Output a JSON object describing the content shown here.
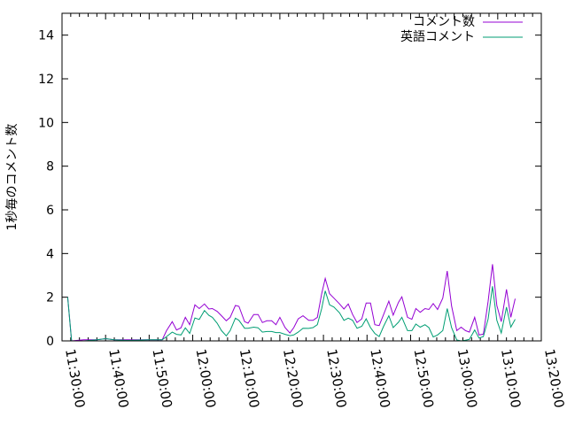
{
  "chart_data": {
    "type": "line",
    "title": "",
    "xlabel": "",
    "ylabel": "1秒毎のコメント数",
    "xlim": [
      "11:30:00",
      "13:20:00"
    ],
    "ylim": [
      0,
      15
    ],
    "x_tick_labels": [
      "11:30:00",
      "11:40:00",
      "11:50:00",
      "12:00:00",
      "12:10:00",
      "12:20:00",
      "12:30:00",
      "12:40:00",
      "12:50:00",
      "13:00:00",
      "13:10:00",
      "13:20:00"
    ],
    "y_ticks": [
      0,
      2,
      4,
      6,
      8,
      10,
      12,
      14
    ],
    "y_tick_labels": [
      "0",
      "2",
      "4",
      "6",
      "8",
      "10",
      "12",
      "14"
    ],
    "grid": false,
    "legend_position": "top-right",
    "x": [
      "11:31:18",
      "11:32:12",
      "11:35:00",
      "11:38:00",
      "11:40:00",
      "11:42:00",
      "11:45:00",
      "11:50:00",
      "11:53:00",
      "11:54:00",
      "11:55:18",
      "11:56:18",
      "11:57:18",
      "11:58:18",
      "11:59:18",
      "12:00:30",
      "12:01:30",
      "12:02:42",
      "12:03:42",
      "12:04:30",
      "12:05:36",
      "12:06:36",
      "12:07:42",
      "12:08:36",
      "12:09:48",
      "12:10:36",
      "12:11:54",
      "12:12:42",
      "12:14:00",
      "12:15:00",
      "12:16:00",
      "12:17:00",
      "12:18:06",
      "12:19:06",
      "12:20:00",
      "12:21:12",
      "12:22:18",
      "12:23:12",
      "12:24:12",
      "12:25:18",
      "12:26:36",
      "12:27:36",
      "12:28:36",
      "12:29:36",
      "12:30:24",
      "12:31:24",
      "12:32:24",
      "12:33:42",
      "12:34:42",
      "12:35:42",
      "12:36:42",
      "12:37:42",
      "12:38:48",
      "12:39:48",
      "12:40:48",
      "12:41:48",
      "12:42:48",
      "12:43:48",
      "12:45:00",
      "12:46:00",
      "12:47:12",
      "12:48:00",
      "12:49:18",
      "12:50:18",
      "12:51:12",
      "12:52:12",
      "12:53:18",
      "12:54:12",
      "12:55:12",
      "12:56:12",
      "12:57:24",
      "12:58:24",
      "12:59:24",
      "13:00:36",
      "13:01:36",
      "13:02:36",
      "13:03:30",
      "13:04:42",
      "13:05:42",
      "13:06:42",
      "13:07:48",
      "13:08:48",
      "13:09:48",
      "13:10:48",
      "13:12:00",
      "13:13:00",
      "13:14:00"
    ],
    "series": [
      {
        "name": "コメント数",
        "color": "#9400d3",
        "values": [
          2,
          0,
          0.05,
          0.05,
          0.1,
          0.05,
          0.05,
          0.05,
          0.05,
          0.47,
          0.88,
          0.5,
          0.6,
          1.08,
          0.74,
          1.65,
          1.48,
          1.69,
          1.46,
          1.48,
          1.35,
          1.15,
          0.92,
          1.08,
          1.62,
          1.58,
          0.88,
          0.81,
          1.21,
          1.21,
          0.84,
          0.92,
          0.92,
          0.74,
          1.08,
          0.61,
          0.36,
          0.61,
          1.01,
          1.15,
          0.94,
          0.94,
          1.08,
          2.16,
          2.86,
          2.16,
          1.96,
          1.69,
          1.46,
          1.69,
          1.21,
          0.84,
          1.01,
          1.73,
          1.73,
          0.74,
          0.7,
          1.21,
          1.82,
          1.18,
          1.76,
          2.02,
          1.08,
          0.99,
          1.48,
          1.31,
          1.48,
          1.44,
          1.71,
          1.44,
          1.96,
          3.2,
          1.6,
          0.47,
          0.63,
          0.47,
          0.4,
          1.08,
          0.27,
          0.31,
          1.82,
          3.51,
          1.62,
          0.88,
          2.36,
          1.08,
          1.93
        ]
      },
      {
        "name": "英語コメント",
        "color": "#009e73",
        "values": [
          2,
          0,
          0,
          0.05,
          0.1,
          0.05,
          0.02,
          0.05,
          0.05,
          0.2,
          0.4,
          0.3,
          0.27,
          0.6,
          0.34,
          1.05,
          0.98,
          1.39,
          1.17,
          1.08,
          0.81,
          0.47,
          0.23,
          0.47,
          1.04,
          0.94,
          0.58,
          0.58,
          0.63,
          0.6,
          0.4,
          0.43,
          0.43,
          0.38,
          0.38,
          0.3,
          0.24,
          0.27,
          0.4,
          0.58,
          0.57,
          0.61,
          0.74,
          1.48,
          2.29,
          1.65,
          1.55,
          1.28,
          0.94,
          1.04,
          0.94,
          0.58,
          0.67,
          1.01,
          0.61,
          0.34,
          0.2,
          0.67,
          1.15,
          0.61,
          0.85,
          1.08,
          0.47,
          0.47,
          0.77,
          0.63,
          0.74,
          0.61,
          0.18,
          0.27,
          0.47,
          1.48,
          0.61,
          0.04,
          0,
          0.03,
          0.07,
          0.5,
          0.13,
          0.2,
          1.01,
          2.5,
          0.94,
          0.36,
          1.55,
          0.63,
          0.99
        ]
      }
    ]
  }
}
